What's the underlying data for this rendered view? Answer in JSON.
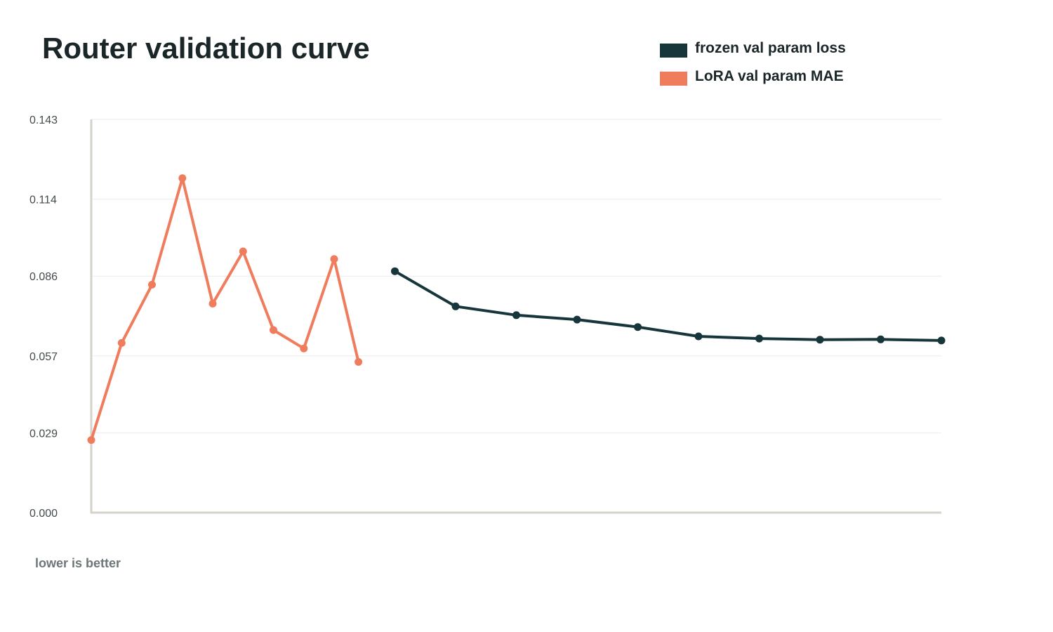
{
  "chart_data": {
    "type": "line",
    "title": "Router validation curve",
    "footnote": "lower is better",
    "xlabel": "",
    "ylabel": "",
    "ylim": [
      0,
      0.143
    ],
    "y_ticks": [
      "0.143",
      "0.114",
      "0.086",
      "0.057",
      "0.029",
      "0.000"
    ],
    "y_tick_values": [
      0.143,
      0.114,
      0.086,
      0.057,
      0.029,
      0.0
    ],
    "grid": true,
    "legend_position": "top-right",
    "series": [
      {
        "name": "frozen val param loss",
        "color": "#17363b",
        "x": [
          10,
          12,
          14,
          16,
          18,
          20,
          22,
          24,
          26,
          28
        ],
        "values": [
          0.0878,
          0.075,
          0.0718,
          0.0702,
          0.0675,
          0.0641,
          0.0633,
          0.0629,
          0.063,
          0.0626
        ]
      },
      {
        "name": "LoRA val param MAE",
        "color": "#f07c5e",
        "x": [
          0,
          1,
          2,
          3,
          4,
          5,
          6,
          7,
          8,
          8.8
        ],
        "values": [
          0.0264,
          0.0617,
          0.0829,
          0.1216,
          0.076,
          0.095,
          0.0664,
          0.0597,
          0.0922,
          0.0548
        ]
      }
    ],
    "xlim": [
      0,
      28
    ]
  }
}
